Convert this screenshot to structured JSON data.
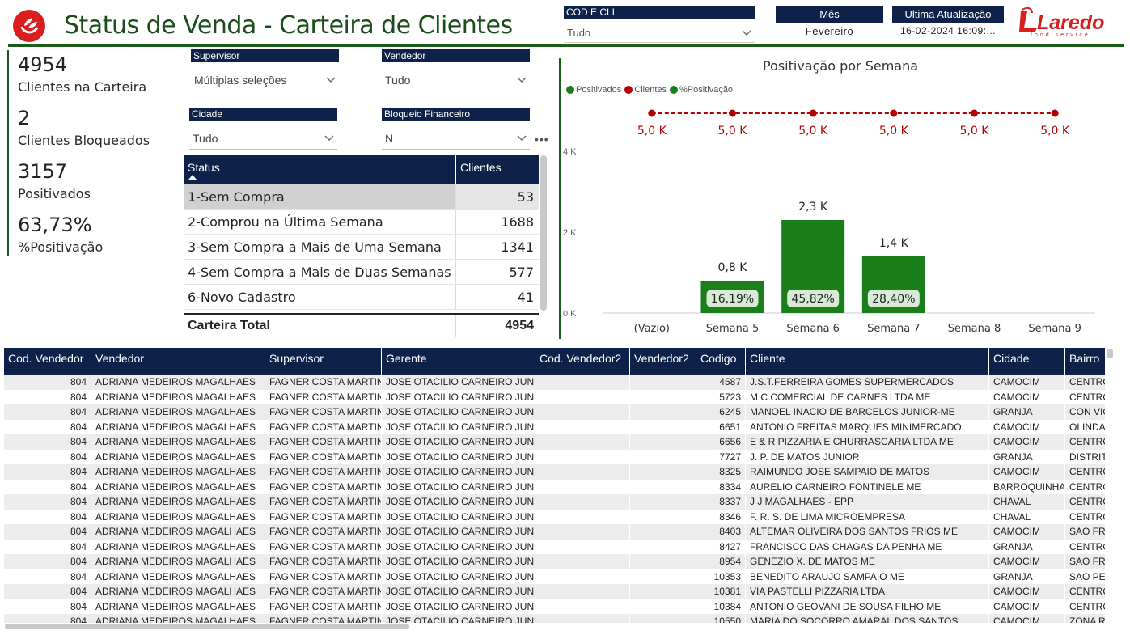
{
  "header": {
    "title": "Status de Venda - Carteira de Clientes",
    "cod_cli": {
      "label": "COD E CLI",
      "value": "Tudo"
    },
    "month": {
      "label": "Mês",
      "value": "Fevereiro"
    },
    "last_update": {
      "label": "Ultima Atualização",
      "value": "16-02-2024 16:09:..."
    },
    "brand_name": "Laredo",
    "brand_tagline": "food service"
  },
  "kpis": [
    {
      "value": "4954",
      "label": "Clientes na Carteira"
    },
    {
      "value": "2",
      "label": "Clientes Bloqueados"
    },
    {
      "value": "3157",
      "label": "Positivados"
    },
    {
      "value": "63,73%",
      "label": "%Positivação"
    }
  ],
  "filters": {
    "supervisor": {
      "label": "Supervisor",
      "value": "Múltiplas seleções"
    },
    "vendedor": {
      "label": "Vendedor",
      "value": "Tudo"
    },
    "cidade": {
      "label": "Cidade",
      "value": "Tudo"
    },
    "bloqueio": {
      "label": "Bloqueio Financeiro",
      "value": "N"
    }
  },
  "status_table": {
    "headers": [
      "Status",
      "Clientes"
    ],
    "rows": [
      {
        "status": "1-Sem Compra",
        "clientes": "53"
      },
      {
        "status": "2-Comprou na Última Semana",
        "clientes": "1688"
      },
      {
        "status": "3-Sem Compra a Mais de Uma Semana",
        "clientes": "1341"
      },
      {
        "status": "4-Sem Compra a Mais de Duas Semanas",
        "clientes": "577"
      },
      {
        "status": "6-Novo Cadastro",
        "clientes": "41"
      }
    ],
    "total": {
      "label": "Carteira Total",
      "value": "4954"
    }
  },
  "chart_data": {
    "type": "bar",
    "title": "Positivação por Semana",
    "legend": [
      "Positivados",
      "Clientes",
      "%Positivação"
    ],
    "legend_position": "top-left",
    "categories": [
      "(Vazio)",
      "Semana 5",
      "Semana 6",
      "Semana 7",
      "Semana 8",
      "Semana 9"
    ],
    "y_ticks": [
      "0 K",
      "2 K",
      "4 K"
    ],
    "ylim": [
      0,
      4000
    ],
    "series": [
      {
        "name": "Positivados",
        "type": "bar",
        "color": "#1a7f1a",
        "values": [
          0,
          800,
          2300,
          1400,
          0,
          0
        ],
        "labels": [
          "",
          "0,8 K",
          "2,3 K",
          "1,4 K",
          "",
          ""
        ]
      },
      {
        "name": "Clientes",
        "type": "line",
        "color": "#b30000",
        "values": [
          5000,
          5000,
          5000,
          5000,
          5000,
          5000
        ],
        "labels": [
          "5,0 K",
          "5,0 K",
          "5,0 K",
          "5,0 K",
          "5,0 K",
          "5,0 K"
        ]
      },
      {
        "name": "%Positivação",
        "type": "label",
        "color": "#1a7f1a",
        "values": [
          null,
          16.19,
          45.82,
          28.4,
          null,
          null
        ],
        "labels": [
          "",
          "16,19%",
          "45,82%",
          "28,40%",
          "",
          ""
        ]
      }
    ]
  },
  "grid": {
    "headers": [
      "Cod. Vendedor",
      "Vendedor",
      "Supervisor",
      "Gerente",
      "Cod. Vendedor2",
      "Vendedor2",
      "Codigo",
      "Cliente",
      "Cidade",
      "Bairro"
    ],
    "rows": [
      [
        "804",
        "ADRIANA MEDEIROS MAGALHAES",
        "FAGNER COSTA MARTINS",
        "JOSE OTACILIO CARNEIRO JUNIOR",
        "",
        "",
        "4587",
        "J.S.T.FERREIRA GOMES SUPERMERCADOS",
        "CAMOCIM",
        "CENTRO"
      ],
      [
        "804",
        "ADRIANA MEDEIROS MAGALHAES",
        "FAGNER COSTA MARTINS",
        "JOSE OTACILIO CARNEIRO JUNIOR",
        "",
        "",
        "5723",
        "M C COMERCIAL DE CARNES LTDA ME",
        "CAMOCIM",
        "CENTRO"
      ],
      [
        "804",
        "ADRIANA MEDEIROS MAGALHAES",
        "FAGNER COSTA MARTINS",
        "JOSE OTACILIO CARNEIRO JUNIOR",
        "",
        "",
        "6245",
        "MANOEL INACIO DE BARCELOS JUNIOR-ME",
        "GRANJA",
        "CON VIC"
      ],
      [
        "804",
        "ADRIANA MEDEIROS MAGALHAES",
        "FAGNER COSTA MARTINS",
        "JOSE OTACILIO CARNEIRO JUNIOR",
        "",
        "",
        "6651",
        "ANTONIO FREITAS MARQUES MINIMERCADO",
        "CAMOCIM",
        "OLINDA"
      ],
      [
        "804",
        "ADRIANA MEDEIROS MAGALHAES",
        "FAGNER COSTA MARTINS",
        "JOSE OTACILIO CARNEIRO JUNIOR",
        "",
        "",
        "6656",
        "E & R PIZZARIA E CHURRASCARIA LTDA ME",
        "CAMOCIM",
        "CENTRO"
      ],
      [
        "804",
        "ADRIANA MEDEIROS MAGALHAES",
        "FAGNER COSTA MARTINS",
        "JOSE OTACILIO CARNEIRO JUNIOR",
        "",
        "",
        "7727",
        "J. P. DE MATOS JUNIOR",
        "GRANJA",
        "DISTRITO"
      ],
      [
        "804",
        "ADRIANA MEDEIROS MAGALHAES",
        "FAGNER COSTA MARTINS",
        "JOSE OTACILIO CARNEIRO JUNIOR",
        "",
        "",
        "8325",
        "RAIMUNDO JOSE SAMPAIO DE MATOS",
        "CAMOCIM",
        "CENTRO"
      ],
      [
        "804",
        "ADRIANA MEDEIROS MAGALHAES",
        "FAGNER COSTA MARTINS",
        "JOSE OTACILIO CARNEIRO JUNIOR",
        "",
        "",
        "8334",
        "AURELIO CARNEIRO FONTINELE ME",
        "BARROQUINHA",
        "CENTRO"
      ],
      [
        "804",
        "ADRIANA MEDEIROS MAGALHAES",
        "FAGNER COSTA MARTINS",
        "JOSE OTACILIO CARNEIRO JUNIOR",
        "",
        "",
        "8337",
        "J J MAGALHAES - EPP",
        "CHAVAL",
        "CENTRO"
      ],
      [
        "804",
        "ADRIANA MEDEIROS MAGALHAES",
        "FAGNER COSTA MARTINS",
        "JOSE OTACILIO CARNEIRO JUNIOR",
        "",
        "",
        "8346",
        "F. R. S. DE LIMA MICROEMPRESA",
        "CHAVAL",
        "CENTRO"
      ],
      [
        "804",
        "ADRIANA MEDEIROS MAGALHAES",
        "FAGNER COSTA MARTINS",
        "JOSE OTACILIO CARNEIRO JUNIOR",
        "",
        "",
        "8403",
        "ALTEMAR OLIVEIRA DOS SANTOS FRIOS ME",
        "CAMOCIM",
        "SAO FRA"
      ],
      [
        "804",
        "ADRIANA MEDEIROS MAGALHAES",
        "FAGNER COSTA MARTINS",
        "JOSE OTACILIO CARNEIRO JUNIOR",
        "",
        "",
        "8427",
        "FRANCISCO DAS CHAGAS DA PENHA ME",
        "GRANJA",
        "CENTRO"
      ],
      [
        "804",
        "ADRIANA MEDEIROS MAGALHAES",
        "FAGNER COSTA MARTINS",
        "JOSE OTACILIO CARNEIRO JUNIOR",
        "",
        "",
        "8954",
        "GENEZIO X. DE MATOS ME",
        "CAMOCIM",
        "SAO FRA"
      ],
      [
        "804",
        "ADRIANA MEDEIROS MAGALHAES",
        "FAGNER COSTA MARTINS",
        "JOSE OTACILIO CARNEIRO JUNIOR",
        "",
        "",
        "10353",
        "BENEDITO ARAUJO SAMPAIO ME",
        "GRANJA",
        "SAO PED"
      ],
      [
        "804",
        "ADRIANA MEDEIROS MAGALHAES",
        "FAGNER COSTA MARTINS",
        "JOSE OTACILIO CARNEIRO JUNIOR",
        "",
        "",
        "10381",
        "VIA PASTELLI PIZZARIA LTDA",
        "CAMOCIM",
        "CENTRO"
      ],
      [
        "804",
        "ADRIANA MEDEIROS MAGALHAES",
        "FAGNER COSTA MARTINS",
        "JOSE OTACILIO CARNEIRO JUNIOR",
        "",
        "",
        "10384",
        "ANTONIO GEOVANI DE SOUSA FILHO ME",
        "CAMOCIM",
        "CENTRO"
      ],
      [
        "804",
        "ADRIANA MEDEIROS MAGALHAES",
        "FAGNER COSTA MARTINS",
        "JOSE OTACILIO CARNEIRO JUNIOR",
        "",
        "",
        "10550",
        "MARIA DO SOCORRO AMARAL DOS SANTOS",
        "CAMOCIM",
        "ZONA RU"
      ]
    ]
  }
}
